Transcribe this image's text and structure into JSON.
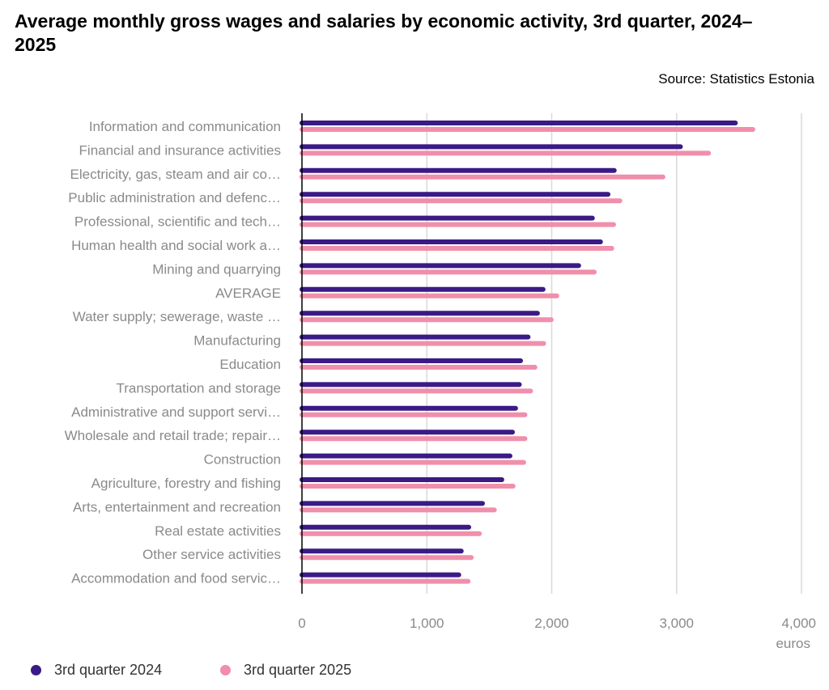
{
  "chart_data": {
    "type": "bar",
    "orientation": "horizontal",
    "title": "Average monthly gross wages and salaries by economic activity, 3rd quarter, 2024–2025",
    "source": "Source: Statistics Estonia",
    "xlabel": "euros",
    "xlim": [
      0,
      4000
    ],
    "xticks": [
      0,
      1000,
      2000,
      3000,
      4000
    ],
    "xtick_labels": [
      "0",
      "1,000",
      "2,000",
      "3,000",
      "4,000"
    ],
    "grid": true,
    "legend_placement": "bottom-left",
    "categories": [
      "Information and communication",
      "Financial and insurance activities",
      "Electricity, gas, steam and air co…",
      "Public administration and defenc…",
      "Professional, scientific and tech…",
      "Human health and social work a…",
      "Mining and quarrying",
      "AVERAGE",
      "Water supply; sewerage, waste …",
      "Manufacturing",
      "Education",
      "Transportation and storage",
      "Administrative and support servi…",
      "Wholesale and retail trade; repair…",
      "Construction",
      "Agriculture, forestry and fishing",
      "Arts, entertainment and recreation",
      "Real estate activities",
      "Other service activities",
      "Accommodation and food servic…"
    ],
    "series": [
      {
        "name": "3rd quarter 2024",
        "color": "#3b1a85",
        "values": [
          3490,
          3050,
          2520,
          2470,
          2345,
          2410,
          2235,
          1950,
          1905,
          1830,
          1770,
          1760,
          1730,
          1705,
          1685,
          1620,
          1465,
          1355,
          1295,
          1275
        ]
      },
      {
        "name": "3rd quarter 2025",
        "color": "#f08fab",
        "values": [
          3630,
          3275,
          2910,
          2565,
          2515,
          2500,
          2360,
          2060,
          2015,
          1955,
          1885,
          1850,
          1805,
          1805,
          1795,
          1710,
          1560,
          1440,
          1375,
          1350
        ]
      }
    ]
  }
}
